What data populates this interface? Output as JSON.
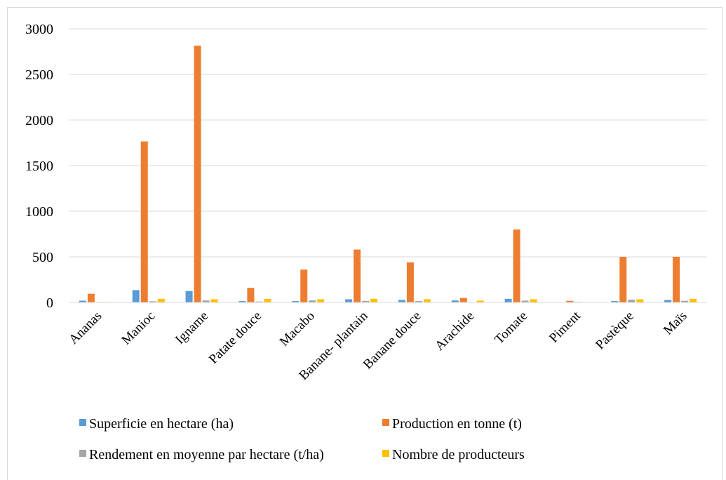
{
  "chart_data": {
    "type": "bar",
    "categories": [
      "Ananas",
      "Manioc",
      "Igname",
      "Patate douce",
      "Macabo",
      "Banane- plantain",
      "Banane douce",
      "Arachide",
      "Tomate",
      "Piment",
      "Pastèque",
      "Maïs"
    ],
    "series": [
      {
        "name": "Superficie en hectare (ha)",
        "color": "#5b9bd5",
        "values": [
          20,
          135,
          125,
          15,
          15,
          35,
          28,
          22,
          40,
          3,
          15,
          28
        ]
      },
      {
        "name": "Production en tonne (t)",
        "color": "#ed7d31",
        "values": [
          95,
          1765,
          2815,
          160,
          360,
          580,
          440,
          50,
          800,
          18,
          500,
          500
        ]
      },
      {
        "name": "Rendement en moyenne par hectare (t/ha)",
        "color": "#a5a5a5",
        "values": [
          5,
          13,
          22,
          10,
          23,
          17,
          16,
          2,
          20,
          6,
          30,
          18
        ]
      },
      {
        "name": "Nombre de producteurs",
        "color": "#ffc000",
        "values": [
          5,
          40,
          35,
          40,
          35,
          40,
          35,
          20,
          35,
          3,
          35,
          40
        ]
      }
    ],
    "ylim": [
      0,
      3000
    ],
    "yticks": [
      "0",
      "500",
      "1000",
      "1500",
      "2000",
      "2500",
      "3000"
    ],
    "grid": true,
    "legend_position": "bottom"
  }
}
